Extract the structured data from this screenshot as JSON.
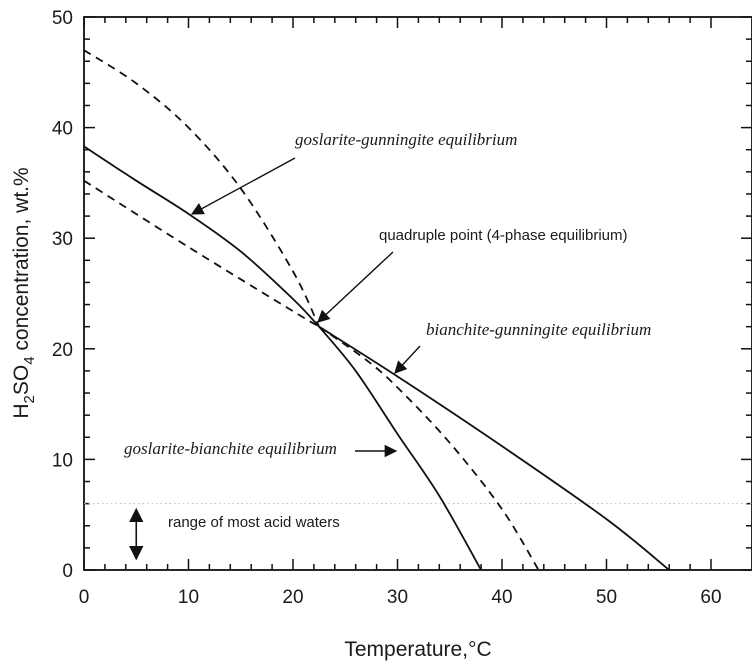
{
  "chart_data": {
    "type": "line",
    "xlabel": "Temperature,°C",
    "ylabel": "H2SO4 concentration, wt.%",
    "xlim": [
      0,
      63
    ],
    "ylim": [
      0,
      50
    ],
    "xticks": [
      0,
      10,
      20,
      30,
      40,
      50,
      60
    ],
    "yticks": [
      0,
      10,
      20,
      30,
      40,
      50
    ],
    "grid": false,
    "series": [
      {
        "style": "solid",
        "points": [
          [
            0,
            38.3
          ],
          [
            5,
            35.2
          ],
          [
            10,
            32.2
          ],
          [
            15,
            28.8
          ],
          [
            20,
            24.5
          ],
          [
            22.5,
            22.0
          ]
        ]
      },
      {
        "style": "solid",
        "points": [
          [
            22.5,
            22.0
          ],
          [
            30,
            17.5
          ],
          [
            40,
            11.2
          ],
          [
            50,
            4.6
          ],
          [
            56,
            0
          ]
        ]
      },
      {
        "style": "solid",
        "points": [
          [
            22.5,
            22.0
          ],
          [
            26,
            18.0
          ],
          [
            30,
            12.3
          ],
          [
            34,
            6.7
          ],
          [
            38,
            0
          ]
        ]
      },
      {
        "style": "dashed",
        "points": [
          [
            0,
            47.0
          ],
          [
            5,
            44.0
          ],
          [
            10,
            40.0
          ],
          [
            15,
            34.5
          ],
          [
            20,
            27.0
          ],
          [
            22.5,
            22.0
          ]
        ]
      },
      {
        "style": "dashed",
        "points": [
          [
            0,
            35.2
          ],
          [
            10,
            29.2
          ],
          [
            20,
            23.4
          ],
          [
            22.5,
            22.0
          ]
        ]
      },
      {
        "style": "dashed",
        "points": [
          [
            22.5,
            22.0
          ],
          [
            27,
            19.0
          ],
          [
            30,
            16.5
          ],
          [
            35,
            11.5
          ],
          [
            40,
            5.5
          ],
          [
            43.5,
            0
          ]
        ]
      }
    ],
    "annotations": [
      {
        "id": "goslarite-gunningite",
        "text": "goslarite-gunningite equilibrium",
        "italic": true
      },
      {
        "id": "quadruple",
        "text": "quadruple point (4-phase equilibrium)",
        "italic": false
      },
      {
        "id": "bianchite-gunningite",
        "text": "bianchite-gunningite equilibrium",
        "italic": true
      },
      {
        "id": "goslarite-bianchite",
        "text": "goslarite-bianchite equilibrium",
        "italic": true
      },
      {
        "id": "acid-range",
        "text": "range of most acid waters",
        "italic": false
      }
    ],
    "reference_lines": [
      {
        "y": 6,
        "style": "dotted"
      }
    ],
    "range_marker": {
      "x": 5,
      "y_from": 1,
      "y_to": 5.5
    }
  }
}
